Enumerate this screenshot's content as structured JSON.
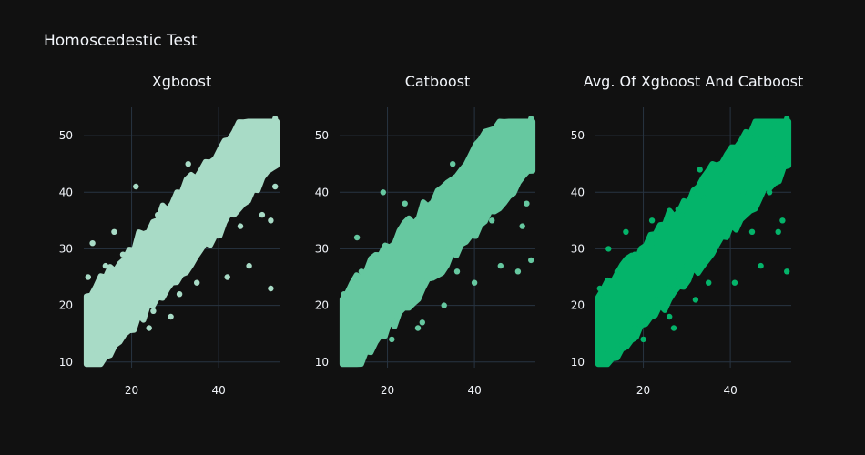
{
  "title": "Homoscedestic Test",
  "chart_data": [
    {
      "type": "scatter",
      "title": "Xgboost",
      "color": "#a8dbc6",
      "xlim": [
        9,
        54
      ],
      "ylim": [
        9,
        55
      ],
      "xticks": [
        20,
        40
      ],
      "yticks": [
        10,
        20,
        30,
        40,
        50
      ],
      "xlabel": "",
      "ylabel": "",
      "series": [
        {
          "points": [
            [
              10,
              10
            ],
            [
              12,
              12
            ],
            [
              15,
              14
            ],
            [
              18,
              17
            ],
            [
              20,
              19
            ],
            [
              23,
              21
            ],
            [
              26,
              24
            ],
            [
              28,
              26
            ],
            [
              30,
              28
            ],
            [
              33,
              31
            ],
            [
              36,
              34
            ],
            [
              38,
              36
            ],
            [
              40,
              38
            ],
            [
              43,
              41
            ],
            [
              46,
              43
            ],
            [
              48,
              45
            ],
            [
              50,
              47
            ],
            [
              53,
              49
            ],
            [
              10,
              25
            ],
            [
              14,
              27
            ],
            [
              18,
              29
            ],
            [
              22,
              31
            ],
            [
              26,
              33
            ],
            [
              30,
              36
            ],
            [
              34,
              39
            ],
            [
              38,
              42
            ],
            [
              42,
              46
            ],
            [
              46,
              49
            ],
            [
              50,
              51
            ],
            [
              53,
              53
            ],
            [
              11,
              31
            ],
            [
              16,
              33
            ],
            [
              21,
              41
            ],
            [
              26,
              36
            ],
            [
              33,
              45
            ],
            [
              44,
              46
            ],
            [
              25,
              19
            ],
            [
              31,
              22
            ],
            [
              42,
              25
            ],
            [
              47,
              27
            ],
            [
              52,
              23
            ],
            [
              50,
              36
            ],
            [
              52,
              35
            ],
            [
              14,
              13
            ],
            [
              17,
              16
            ],
            [
              24,
              16
            ],
            [
              29,
              18
            ],
            [
              35,
              24
            ],
            [
              45,
              34
            ],
            [
              53,
              41
            ]
          ]
        }
      ]
    },
    {
      "type": "scatter",
      "title": "Catboost",
      "color": "#66c8a0",
      "xlim": [
        9,
        54
      ],
      "ylim": [
        9,
        55
      ],
      "xticks": [
        20,
        40
      ],
      "yticks": [
        10,
        20,
        30,
        40,
        50
      ],
      "xlabel": "",
      "ylabel": "",
      "series": [
        {
          "points": [
            [
              10,
              10
            ],
            [
              12,
              12
            ],
            [
              15,
              14
            ],
            [
              18,
              16
            ],
            [
              20,
              18
            ],
            [
              23,
              21
            ],
            [
              26,
              23
            ],
            [
              28,
              25
            ],
            [
              30,
              27
            ],
            [
              33,
              30
            ],
            [
              36,
              33
            ],
            [
              38,
              35
            ],
            [
              40,
              37
            ],
            [
              43,
              40
            ],
            [
              46,
              42
            ],
            [
              48,
              44
            ],
            [
              50,
              46
            ],
            [
              53,
              48
            ],
            [
              10,
              22
            ],
            [
              14,
              26
            ],
            [
              18,
              28
            ],
            [
              22,
              30
            ],
            [
              26,
              33
            ],
            [
              30,
              36
            ],
            [
              34,
              40
            ],
            [
              38,
              44
            ],
            [
              42,
              48
            ],
            [
              46,
              51
            ],
            [
              50,
              52
            ],
            [
              53,
              53
            ],
            [
              13,
              32
            ],
            [
              19,
              40
            ],
            [
              24,
              38
            ],
            [
              35,
              45
            ],
            [
              42,
              49
            ],
            [
              27,
              16
            ],
            [
              33,
              20
            ],
            [
              40,
              24
            ],
            [
              46,
              27
            ],
            [
              50,
              26
            ],
            [
              53,
              28
            ],
            [
              51,
              34
            ],
            [
              52,
              38
            ],
            [
              15,
              12
            ],
            [
              21,
              14
            ],
            [
              28,
              17
            ],
            [
              36,
              26
            ],
            [
              44,
              35
            ],
            [
              49,
              40
            ],
            [
              12,
              18
            ]
          ]
        }
      ]
    },
    {
      "type": "scatter",
      "title": "Avg. Of Xgboost And Catboost",
      "color": "#04b46a",
      "xlim": [
        9,
        54
      ],
      "ylim": [
        9,
        55
      ],
      "xticks": [
        20,
        40
      ],
      "yticks": [
        10,
        20,
        30,
        40,
        50
      ],
      "xlabel": "",
      "ylabel": "",
      "series": [
        {
          "points": [
            [
              10,
              10
            ],
            [
              12,
              12
            ],
            [
              15,
              14
            ],
            [
              18,
              16
            ],
            [
              20,
              18
            ],
            [
              23,
              21
            ],
            [
              26,
              23
            ],
            [
              28,
              25
            ],
            [
              30,
              27
            ],
            [
              33,
              30
            ],
            [
              36,
              33
            ],
            [
              38,
              35
            ],
            [
              40,
              37
            ],
            [
              43,
              40
            ],
            [
              46,
              42
            ],
            [
              48,
              44
            ],
            [
              50,
              46
            ],
            [
              53,
              48
            ],
            [
              10,
              23
            ],
            [
              14,
              26
            ],
            [
              18,
              29
            ],
            [
              22,
              31
            ],
            [
              26,
              33
            ],
            [
              30,
              36
            ],
            [
              34,
              39
            ],
            [
              38,
              43
            ],
            [
              42,
              47
            ],
            [
              46,
              50
            ],
            [
              50,
              52
            ],
            [
              53,
              53
            ],
            [
              12,
              30
            ],
            [
              16,
              33
            ],
            [
              22,
              35
            ],
            [
              28,
              37
            ],
            [
              33,
              44
            ],
            [
              44,
              48
            ],
            [
              26,
              18
            ],
            [
              32,
              21
            ],
            [
              41,
              24
            ],
            [
              47,
              27
            ],
            [
              53,
              26
            ],
            [
              51,
              33
            ],
            [
              52,
              35
            ],
            [
              14,
              13
            ],
            [
              20,
              14
            ],
            [
              27,
              16
            ],
            [
              35,
              24
            ],
            [
              45,
              33
            ],
            [
              49,
              40
            ],
            [
              11,
              20
            ]
          ]
        }
      ]
    }
  ]
}
